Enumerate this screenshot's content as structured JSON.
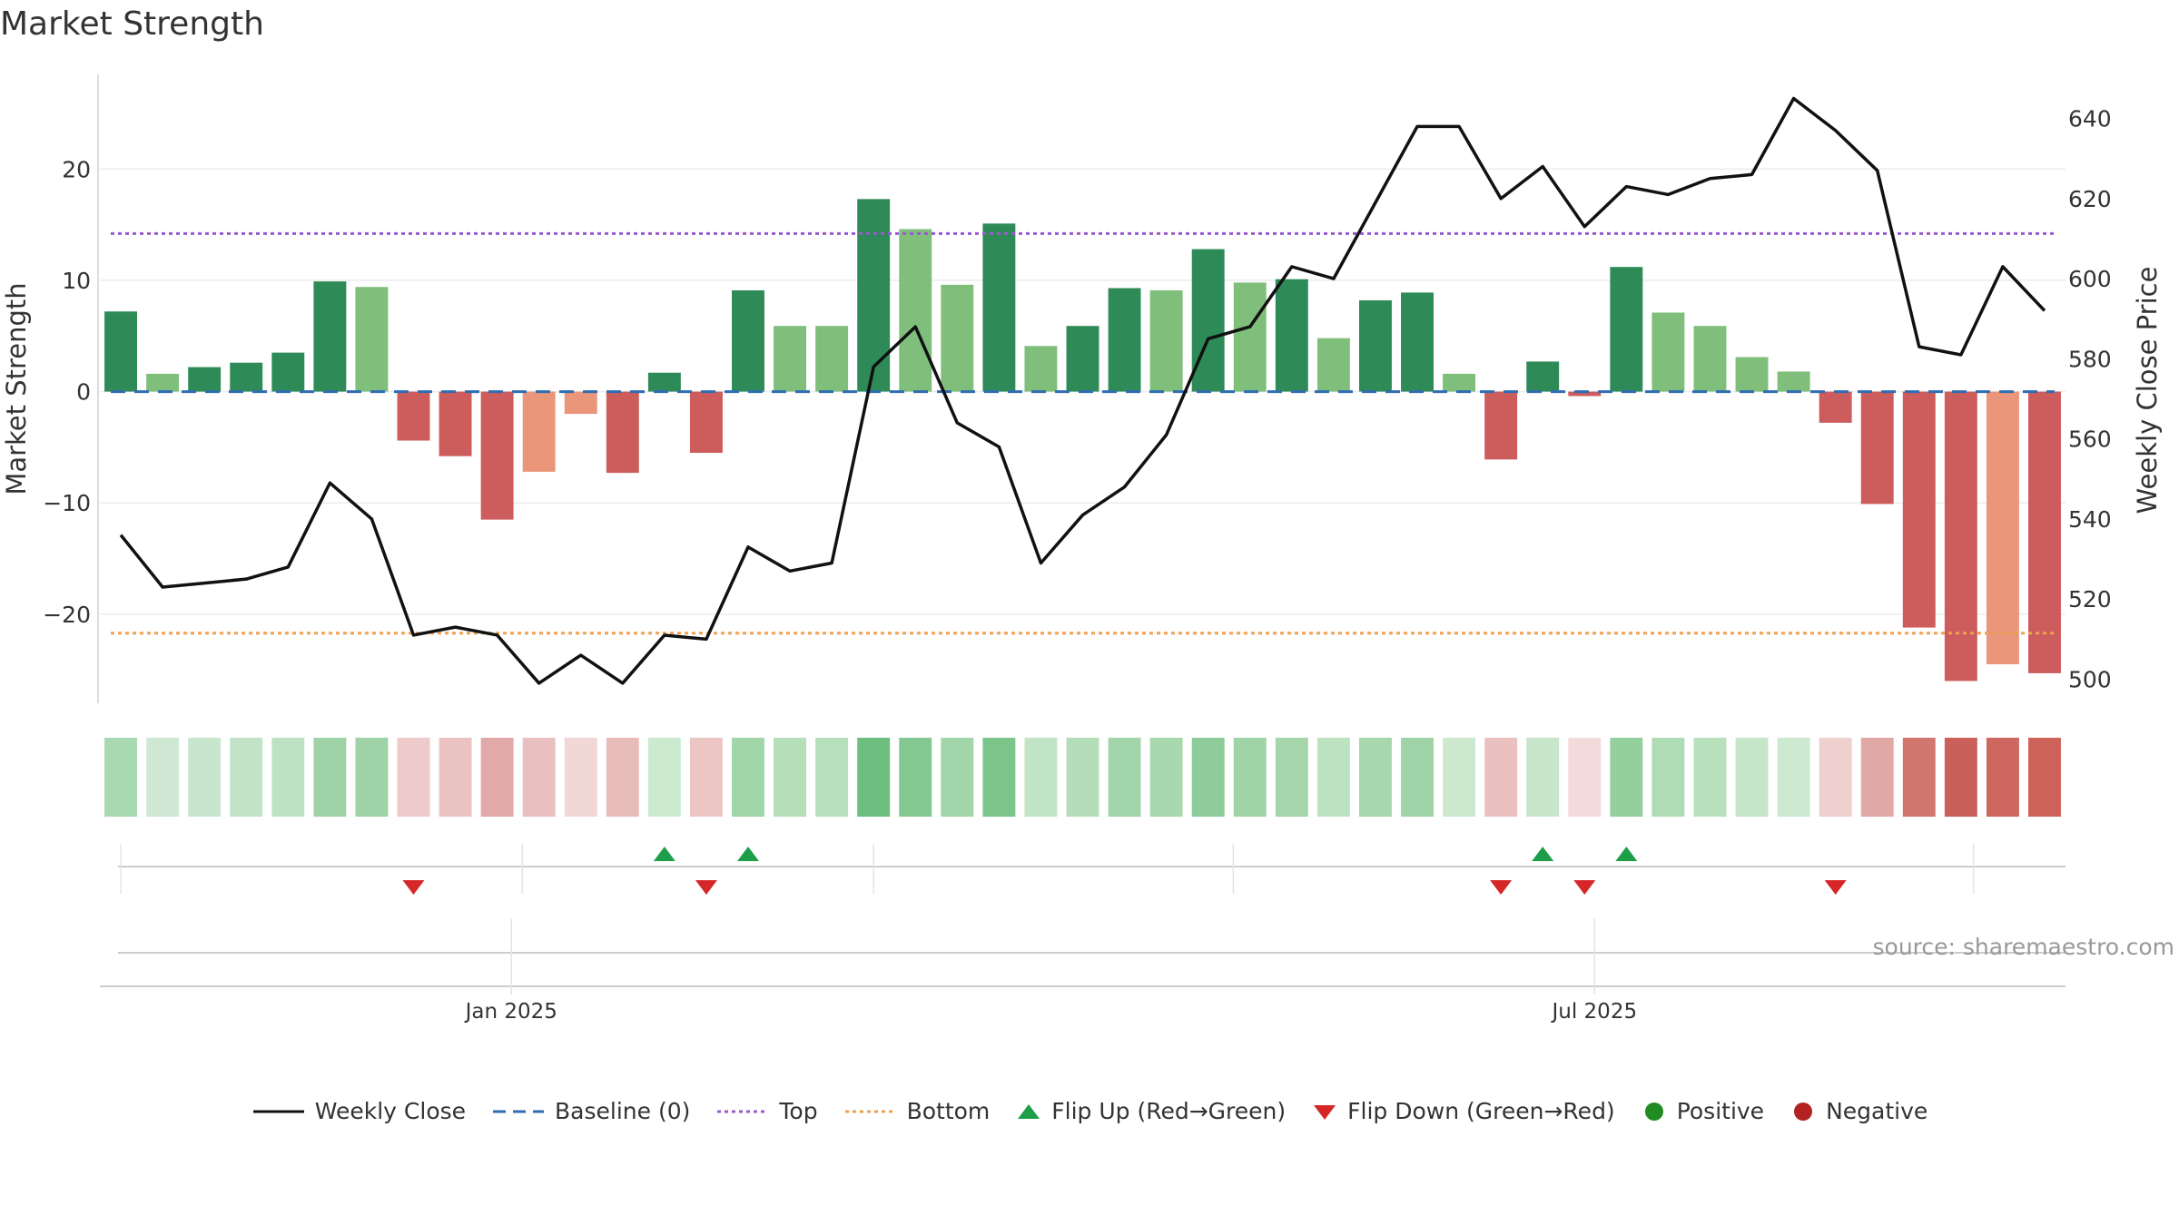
{
  "title": "Market Strength",
  "source": "source: sharemaestro.com",
  "chart_data": {
    "type": "bar",
    "title": "Market Strength",
    "ylabel": "Market Strength",
    "y2label": "Weekly Close Price",
    "ylim": [
      -28,
      28.5
    ],
    "y2lim": [
      494,
      651
    ],
    "yticks": [
      20,
      10,
      0,
      -10,
      -20
    ],
    "ytick_labels": [
      "20",
      "10",
      "0",
      "−10",
      "−20"
    ],
    "y2ticks": [
      640,
      620,
      600,
      580,
      560,
      540,
      520,
      500
    ],
    "y2tick_labels": [
      "640",
      "620",
      "600",
      "580",
      "560",
      "540",
      "520",
      "500"
    ],
    "xtick_labels": [
      "Jan 2025",
      "Jul 2025"
    ],
    "xtick_weeks": [
      9.6,
      35.5
    ],
    "weeks": 47,
    "strength": [
      7.2,
      1.6,
      2.2,
      2.6,
      3.5,
      9.9,
      9.4,
      -4.4,
      -5.8,
      -11.5,
      -7.2,
      -2.0,
      -7.3,
      1.7,
      -5.5,
      9.1,
      5.9,
      5.9,
      17.3,
      14.6,
      9.6,
      15.1,
      4.1,
      5.9,
      9.3,
      9.1,
      12.8,
      9.8,
      10.1,
      4.8,
      8.2,
      8.9,
      1.6,
      -6.1,
      2.7,
      -0.4,
      11.2,
      7.1,
      5.9,
      3.1,
      1.8,
      -2.8,
      -10.1,
      -21.2,
      -26.0,
      -24.5,
      -25.3
    ],
    "bar_colors": [
      "#2e8b57",
      "#7fbf7b",
      "#2e8b57",
      "#2e8b57",
      "#2e8b57",
      "#2e8b57",
      "#7fbf7b",
      "#cd5c5c",
      "#cd5c5c",
      "#cd5c5c",
      "#e9967a",
      "#e9967a",
      "#cd5c5c",
      "#2e8b57",
      "#cd5c5c",
      "#2e8b57",
      "#7fbf7b",
      "#7fbf7b",
      "#2e8b57",
      "#7fbf7b",
      "#7fbf7b",
      "#2e8b57",
      "#7fbf7b",
      "#2e8b57",
      "#2e8b57",
      "#7fbf7b",
      "#2e8b57",
      "#7fbf7b",
      "#2e8b57",
      "#7fbf7b",
      "#2e8b57",
      "#2e8b57",
      "#7fbf7b",
      "#cd5c5c",
      "#2e8b57",
      "#cd5c5c",
      "#2e8b57",
      "#7fbf7b",
      "#7fbf7b",
      "#7fbf7b",
      "#7fbf7b",
      "#cd5c5c",
      "#cd5c5c",
      "#cd5c5c",
      "#cd5c5c",
      "#e9967a",
      "#cd5c5c"
    ],
    "weekly_close": [
      536,
      523,
      524,
      525,
      528,
      549,
      540,
      511,
      513,
      511,
      499,
      506,
      499,
      511,
      510,
      533,
      527,
      529,
      578,
      588,
      564,
      558,
      529,
      541,
      548,
      561,
      585,
      588,
      603,
      600,
      619,
      638,
      638,
      620,
      628,
      613,
      623,
      621,
      625,
      626,
      645,
      637,
      627,
      583,
      581,
      603,
      592
    ],
    "heat_colors": [
      "#a9d9b0",
      "#cfe8d4",
      "#c8e6cd",
      "#c2e3c7",
      "#bde2c3",
      "#9fd3a7",
      "#9fd3a7",
      "#eecaca",
      "#eac2c1",
      "#e1aaa8",
      "#e9c0bf",
      "#f1d7d6",
      "#e8bcbb",
      "#cceacf",
      "#ecc6c5",
      "#a0d6a8",
      "#b5deb9",
      "#b7dfbb",
      "#6ebe7f",
      "#82c890",
      "#a3d5aa",
      "#7bc58a",
      "#c0e4c5",
      "#b4ddb9",
      "#a2d5a9",
      "#a8d8ae",
      "#8fcc9b",
      "#a0d4a7",
      "#a4d5ab",
      "#bde2c2",
      "#a7d7ad",
      "#a0d4a8",
      "#cce9d0",
      "#eac1c0",
      "#c8e6cc",
      "#f3dadb",
      "#94cf9e",
      "#b0dcb5",
      "#b8e0bd",
      "#c6e6ca",
      "#cde9d1",
      "#eed0cf",
      "#e0a9a6",
      "#d27670",
      "#c9605a",
      "#cd6760",
      "#cd625b"
    ],
    "top_level": 14.2,
    "bottom_level": -21.7,
    "flips_up": [
      13,
      15,
      34,
      36
    ],
    "flips_down": [
      7,
      14,
      33,
      35,
      41
    ],
    "legend": [
      "Weekly Close",
      "Baseline (0)",
      "Top",
      "Bottom",
      "Flip Up (Red→Green)",
      "Flip Down (Green→Red)",
      "Positive",
      "Negative"
    ],
    "colors": {
      "line": "#111111",
      "baseline": "#2f6db3",
      "top": "#9b59d0",
      "bottom": "#f0a050",
      "flip_up": "#1f9e4a",
      "flip_down": "#d62728",
      "positive": "#228b22",
      "negative": "#b22222"
    },
    "grid": true
  }
}
